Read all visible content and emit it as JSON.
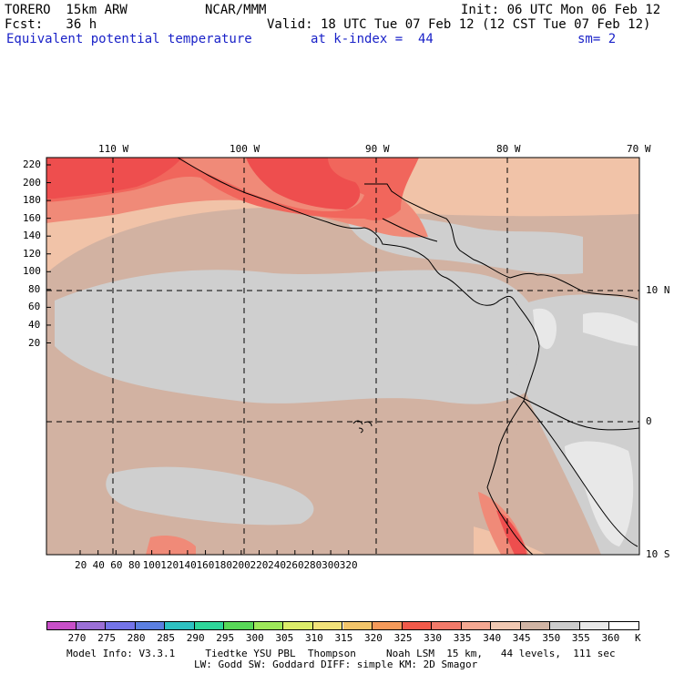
{
  "header": {
    "model": "TORERO  15km ARW",
    "center": "NCAR/MMM",
    "init": "Init: 06 UTC Mon 06 Feb 12",
    "fcst": "Fcst:   36 h",
    "valid": "Valid: 18 UTC Tue 07 Feb 12 (12 CST Tue 07 Feb 12)",
    "field": "Equivalent potential temperature",
    "level": "at k-index =  44",
    "smoothing": "sm= 2"
  },
  "map": {
    "top_lon_labels": [
      "110 W",
      "100 W",
      "90 W",
      "80 W",
      "70 W"
    ],
    "right_lat_labels": [
      "10 N",
      "0",
      "10 S"
    ],
    "left_y_labels": [
      "220",
      "200",
      "180",
      "160",
      "140",
      "120",
      "100",
      "80",
      "60",
      "40",
      "20"
    ],
    "bottom_x_labels": [
      "20",
      "40",
      "60",
      "80",
      "100",
      "120",
      "140",
      "160",
      "180",
      "200",
      "220",
      "240",
      "260",
      "280",
      "300",
      "320"
    ],
    "colors": {
      "c335": "#ee4e4e",
      "c330": "#f1665c",
      "c325": "#f08a78",
      "c340": "#f1c3a8",
      "c345": "#d2b2a2",
      "c350": "#cfcfcf",
      "c355": "#e8e8e8",
      "c360": "#ffffff"
    }
  },
  "colorbar": {
    "labels": [
      "270",
      "275",
      "280",
      "285",
      "290",
      "295",
      "300",
      "305",
      "310",
      "315",
      "320",
      "325",
      "330",
      "335",
      "340",
      "345",
      "350",
      "355",
      "360",
      "K"
    ],
    "colors": [
      "#c84fc8",
      "#9b6fd6",
      "#7474e8",
      "#5b7fe0",
      "#2ec2c2",
      "#2ed69a",
      "#58d858",
      "#9ee85a",
      "#dcec6a",
      "#f2e27a",
      "#f3c56a",
      "#f59a5a",
      "#f15a4a",
      "#f27a6a",
      "#f5a892",
      "#f0c8b2",
      "#d0b4a4",
      "#cccccc",
      "#e8e8e8",
      "#ffffff"
    ]
  },
  "footer": {
    "line1": "Model Info: V3.3.1     Tiedtke YSU PBL  Thompson     Noah LSM  15 km,   44 levels,  111 sec",
    "line2": "LW: Godd SW: Goddard DIFF: simple KM: 2D Smagor"
  }
}
